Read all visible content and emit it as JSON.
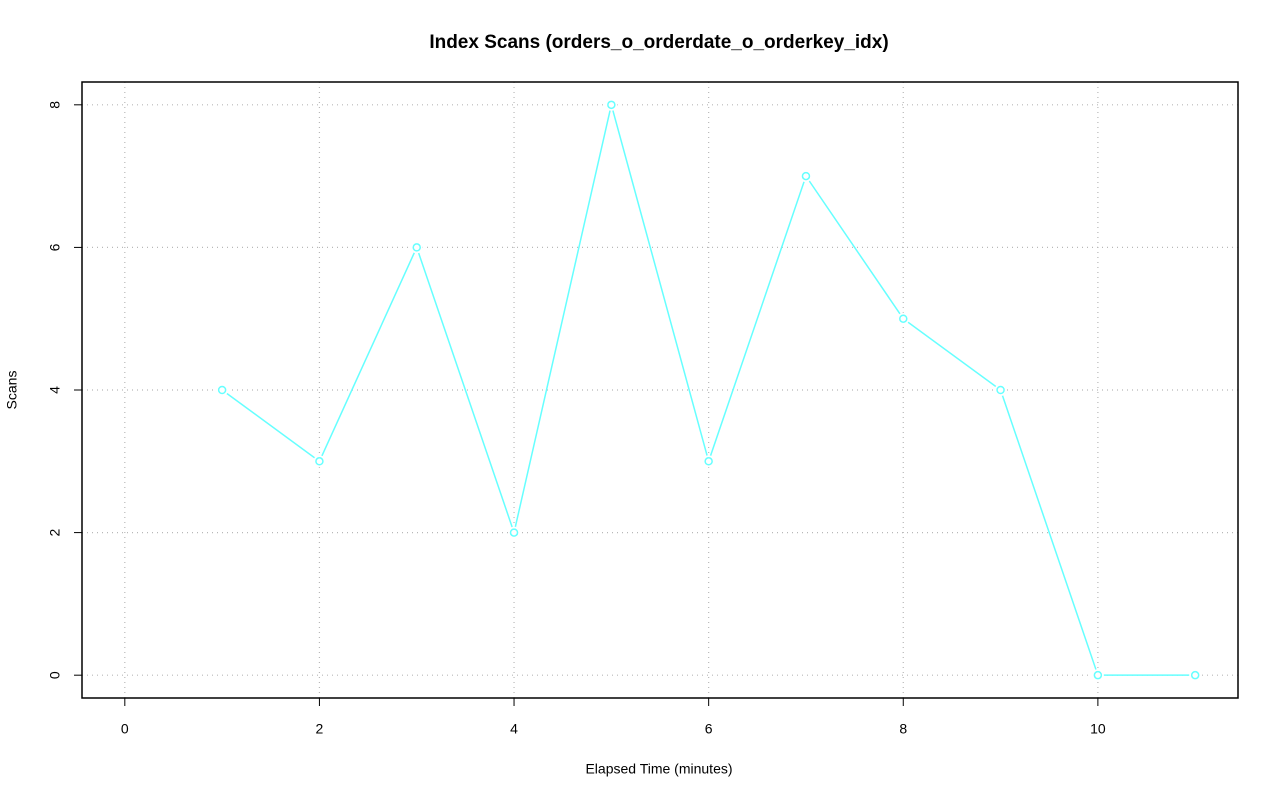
{
  "chart_data": {
    "type": "line",
    "title": "Index Scans (orders_o_orderdate_o_orderkey_idx)",
    "x_label": "Elapsed Time (minutes)",
    "y_label": "Scans",
    "x": [
      1,
      2,
      3,
      4,
      5,
      6,
      7,
      8,
      9,
      10,
      11
    ],
    "values": [
      4,
      3,
      6,
      2,
      8,
      3,
      7,
      5,
      4,
      0,
      0
    ],
    "color": "#66ffff",
    "xlim": [
      -0.44,
      11.44
    ],
    "xticks": [
      0,
      2,
      4,
      6,
      8,
      10
    ],
    "ylim": [
      -0.32,
      8.32
    ],
    "yticks": [
      0,
      2,
      4,
      6,
      8
    ],
    "grid": true
  }
}
